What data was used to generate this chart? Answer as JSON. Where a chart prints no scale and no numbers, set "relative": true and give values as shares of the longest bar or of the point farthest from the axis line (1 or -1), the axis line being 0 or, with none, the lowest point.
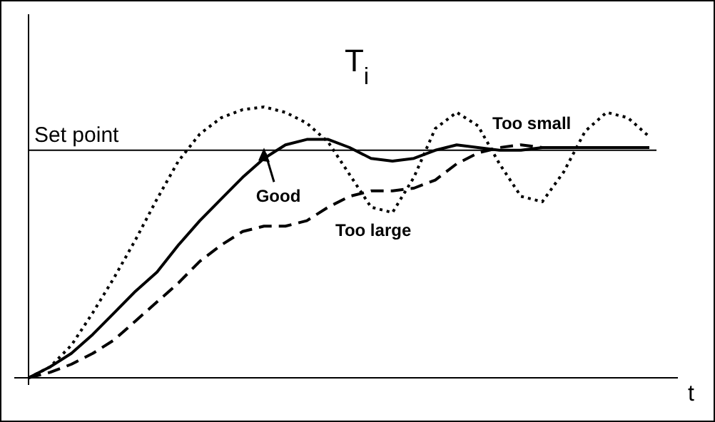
{
  "chart_data": {
    "type": "line",
    "title": "T$_{i}$",
    "xlabel": "t",
    "relative": true,
    "categories": [
      null,
      null,
      null,
      null,
      null,
      null,
      null,
      null,
      null,
      null,
      null,
      null,
      null,
      null,
      null,
      null,
      null,
      null,
      null,
      null,
      null,
      null,
      null,
      null,
      null,
      null,
      null,
      null,
      null,
      null,
      null
    ],
    "ref_lines": [
      {
        "axis": "y",
        "value": 0.84,
        "label": "Set point",
        "color": "#000000"
      }
    ],
    "series": [
      {
        "name": "Too small",
        "color": "#000000",
        "line_style": "dotted",
        "values": [
          0,
          0.04,
          0.12,
          0.24,
          0.37,
          0.51,
          0.66,
          0.8,
          0.9,
          0.96,
          0.99,
          1,
          0.98,
          0.94,
          0.87,
          0.75,
          0.63,
          0.61,
          0.74,
          0.92,
          0.98,
          0.93,
          0.79,
          0.67,
          0.65,
          0.76,
          0.91,
          0.98,
          0.96,
          0.89,
          null
        ]
      },
      {
        "name": "Good",
        "color": "#000000",
        "line_style": "solid",
        "values": [
          0,
          0.04,
          0.09,
          0.16,
          0.24,
          0.32,
          0.39,
          0.49,
          0.58,
          0.66,
          0.74,
          0.81,
          0.86,
          0.88,
          0.88,
          0.85,
          0.81,
          0.8,
          0.81,
          0.84,
          0.86,
          0.85,
          0.84,
          0.84,
          0.85,
          0.85,
          0.85,
          0.85,
          0.85,
          0.85,
          null
        ]
      },
      {
        "name": "Too large",
        "color": "#000000",
        "line_style": "dashed",
        "values": [
          0,
          0.02,
          0.05,
          0.09,
          0.14,
          0.21,
          0.28,
          0.35,
          0.43,
          0.49,
          0.54,
          0.56,
          0.56,
          0.58,
          0.63,
          0.67,
          0.69,
          0.69,
          0.7,
          0.73,
          0.79,
          0.83,
          0.85,
          0.86,
          0.85,
          0.85,
          0.85,
          0.85,
          0.85,
          0.85,
          null
        ]
      }
    ]
  }
}
